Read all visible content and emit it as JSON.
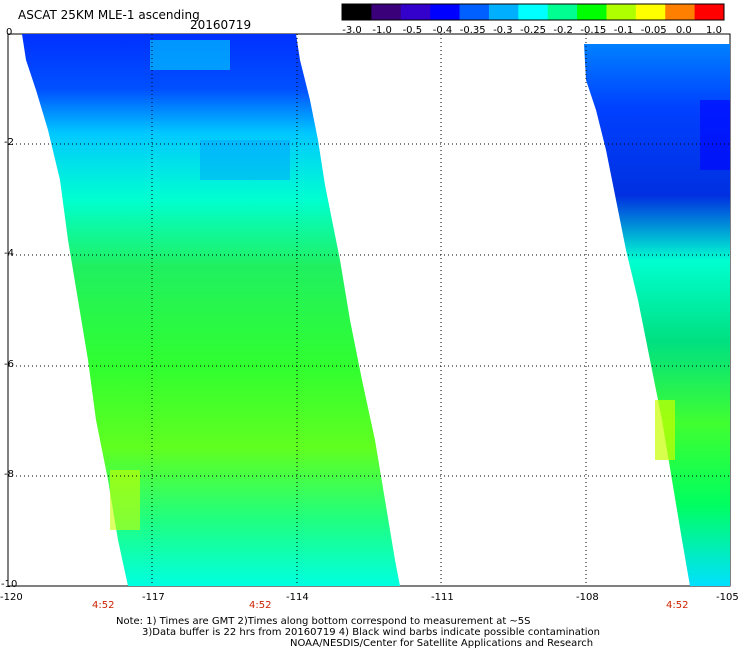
{
  "title": "ASCAT 25KM MLE-1 ascending",
  "date": "20160719",
  "colorbar": {
    "labels": [
      "-3.0",
      "-1.0",
      "-0.5",
      "-0.4",
      "-0.35",
      "-0.3",
      "-0.25",
      "-0.2",
      "-0.15",
      "-0.1",
      "-0.05",
      "0.0",
      "1.0"
    ],
    "colors": [
      "#000000",
      "#3a007a",
      "#3300cc",
      "#0000ff",
      "#0060ff",
      "#00b0ff",
      "#00ffff",
      "#00ff90",
      "#00ff00",
      "#b0ff00",
      "#ffff00",
      "#ff8000",
      "#ff0000"
    ]
  },
  "axes": {
    "x_ticks": [
      "-120",
      "-117",
      "-114",
      "-111",
      "-108",
      "-105"
    ],
    "y_ticks": [
      "0",
      "-2",
      "-4",
      "-6",
      "-8",
      "-10"
    ]
  },
  "pass_times": [
    "4:52",
    "4:52",
    "4:52"
  ],
  "notes": {
    "line1": "Note: 1) Times are GMT 2)Times along bottom correspond to measurement at ~5S",
    "line2": "3)Data buffer is 22 hrs from 20160719 4) Black wind barbs indicate possible contamination",
    "line3": "NOAA/NESDIS/Center for Satellite Applications and Research"
  }
}
